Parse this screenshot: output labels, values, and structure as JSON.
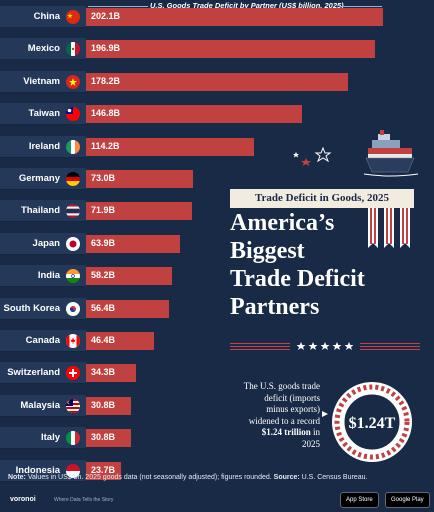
{
  "colors": {
    "background": "#182a45",
    "bar": "#c0413f",
    "label_box": "#24395a",
    "accent_cream": "#f2ece0"
  },
  "chart_data": {
    "type": "bar",
    "orientation": "horizontal",
    "title": "U.S. Goods Trade Deficit by Partner (US$ billion, 2025)",
    "categories": [
      "China",
      "Mexico",
      "Vietnam",
      "Taiwan",
      "Ireland",
      "Germany",
      "Thailand",
      "Japan",
      "India",
      "South Korea",
      "Canada",
      "Switzerland",
      "Malaysia",
      "Italy",
      "Indonesia"
    ],
    "values": [
      202.1,
      196.9,
      178.2,
      146.8,
      114.2,
      73.0,
      71.9,
      63.9,
      58.2,
      56.4,
      46.4,
      34.3,
      30.8,
      30.8,
      23.7
    ],
    "value_labels": [
      "202.1B",
      "196.9B",
      "178.2B",
      "146.8B",
      "114.2B",
      "73.0B",
      "71.9B",
      "63.9B",
      "58.2B",
      "56.4B",
      "46.4B",
      "34.3B",
      "30.8B",
      "30.8B",
      "23.7B"
    ],
    "flags": [
      "china-flag",
      "mexico-flag",
      "vietnam-flag",
      "taiwan-flag",
      "ireland-flag",
      "germany-flag",
      "thailand-flag",
      "japan-flag",
      "india-flag",
      "south-korea-flag",
      "canada-flag",
      "switzerland-flag",
      "malaysia-flag",
      "italy-flag",
      "indonesia-flag"
    ],
    "xlabel": "",
    "ylabel": "",
    "grid": false,
    "legend": "none"
  },
  "kicker": "Trade Deficit in Goods, 2025",
  "headline": [
    "America’s",
    "Biggest",
    "Trade Deficit",
    "Partners"
  ],
  "callout": {
    "lines": [
      "The U.S. goods trade",
      "deficit (imports",
      "minus exports)",
      "widened to a record"
    ],
    "highlight": "$1.24 trillion",
    "tail": " in",
    "year": "2025",
    "badge": "$1.24T"
  },
  "note": {
    "prefix": "Note:",
    "body": " Values in US$ bn. 2025 goods data (not seasonally adjusted); figures rounded. ",
    "source_label": "Source:",
    "source": " U.S. Census Bureau."
  },
  "footer": {
    "brand": "voronoi",
    "tagline": "Where Data Tells the Story",
    "app_store": "App Store",
    "google_play": "Google Play"
  }
}
